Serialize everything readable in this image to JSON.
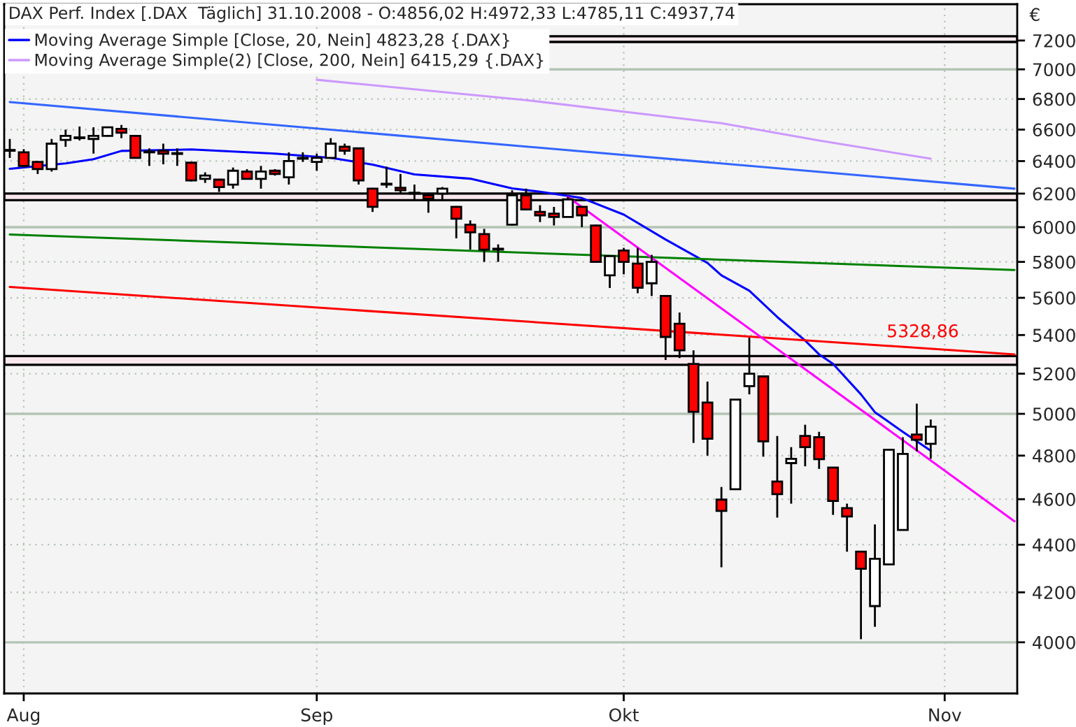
{
  "chart_data": {
    "type": "candlestick",
    "title": "DAX Perf. Index [.DAX  Täglich] 31.10.2008 - O:4856,02 H:4972,33 L:4785,11 C:4937,74",
    "ylabel": "€",
    "categories": [
      null,
      "Aug",
      null,
      null,
      null,
      null,
      null,
      null,
      null,
      null,
      null,
      null,
      null,
      null,
      null,
      null,
      null,
      null,
      null,
      null,
      null,
      null,
      "Sep",
      null,
      null,
      null,
      null,
      null,
      null,
      null,
      null,
      null,
      null,
      null,
      null,
      null,
      null,
      null,
      null,
      null,
      null,
      null,
      null,
      null,
      "Okt",
      null,
      null,
      null,
      null,
      null,
      null,
      null,
      null,
      null,
      null,
      null,
      null,
      null,
      null,
      null,
      null,
      null,
      null,
      null,
      null,
      null,
      null,
      "Nov",
      null,
      null,
      null,
      null,
      null
    ],
    "ohlc": [
      [
        6470,
        6540,
        6420,
        6465
      ],
      [
        6455,
        6475,
        6360,
        6370
      ],
      [
        6395,
        6400,
        6320,
        6350
      ],
      [
        6350,
        6540,
        6335,
        6510
      ],
      [
        6534,
        6600,
        6490,
        6560
      ],
      [
        6545,
        6620,
        6530,
        6550
      ],
      [
        6540,
        6615,
        6447,
        6560
      ],
      [
        6560,
        6620,
        6555,
        6615
      ],
      [
        6605,
        6630,
        6545,
        6580
      ],
      [
        6560,
        6565,
        6420,
        6420
      ],
      [
        6460,
        6480,
        6370,
        6455
      ],
      [
        6465,
        6510,
        6380,
        6447
      ],
      [
        6450,
        6480,
        6370,
        6445
      ],
      [
        6390,
        6395,
        6274,
        6280
      ],
      [
        6290,
        6330,
        6265,
        6310
      ],
      [
        6285,
        6290,
        6210,
        6240
      ],
      [
        6255,
        6360,
        6230,
        6340
      ],
      [
        6335,
        6350,
        6285,
        6290
      ],
      [
        6290,
        6370,
        6230,
        6335
      ],
      [
        6340,
        6350,
        6310,
        6320
      ],
      [
        6300,
        6455,
        6255,
        6400
      ],
      [
        6415,
        6455,
        6395,
        6420
      ],
      [
        6395,
        6447,
        6340,
        6420
      ],
      [
        6420,
        6545,
        6420,
        6510
      ],
      [
        6490,
        6510,
        6440,
        6465
      ],
      [
        6480,
        6480,
        6255,
        6280
      ],
      [
        6230,
        6235,
        6090,
        6120
      ],
      [
        6260,
        6365,
        6235,
        6255
      ],
      [
        6235,
        6320,
        6200,
        6220
      ],
      [
        6205,
        6255,
        6165,
        6200
      ],
      [
        6190,
        6205,
        6085,
        6170
      ],
      [
        6200,
        6240,
        6160,
        6230
      ],
      [
        6120,
        6125,
        5935,
        6050
      ],
      [
        6015,
        6040,
        5870,
        5970
      ],
      [
        5960,
        5990,
        5800,
        5870
      ],
      [
        5875,
        5900,
        5800,
        5870
      ],
      [
        6015,
        6220,
        6010,
        6190
      ],
      [
        6190,
        6230,
        6100,
        6105
      ],
      [
        6090,
        6130,
        6030,
        6070
      ],
      [
        6080,
        6120,
        6010,
        6060
      ],
      [
        6060,
        6180,
        6060,
        6165
      ],
      [
        6120,
        6125,
        6000,
        6070
      ],
      [
        6010,
        6015,
        5795,
        5800
      ],
      [
        5724,
        5833,
        5654,
        5833
      ],
      [
        5865,
        5880,
        5730,
        5800
      ],
      [
        5790,
        5880,
        5625,
        5655
      ],
      [
        5680,
        5840,
        5610,
        5800
      ],
      [
        5610,
        5610,
        5270,
        5390
      ],
      [
        5460,
        5520,
        5280,
        5320
      ],
      [
        5250,
        5320,
        4860,
        5010
      ],
      [
        5055,
        5160,
        4800,
        4880
      ],
      [
        4598,
        4655,
        4304,
        4548
      ],
      [
        4645,
        5070,
        4645,
        5070
      ],
      [
        5137,
        5386,
        5096,
        5200
      ],
      [
        5186,
        5186,
        4795,
        4867
      ],
      [
        4680,
        4893,
        4518,
        4623
      ],
      [
        4765,
        4840,
        4580,
        4785
      ],
      [
        4893,
        4947,
        4750,
        4840
      ],
      [
        4887,
        4913,
        4738,
        4783
      ],
      [
        4744,
        4744,
        4530,
        4592
      ],
      [
        4560,
        4580,
        4370,
        4523
      ],
      [
        4370,
        4370,
        4012,
        4298
      ],
      [
        4144,
        4488,
        4061,
        4340
      ],
      [
        4316,
        4828,
        4316,
        4828
      ],
      [
        4464,
        4887,
        4464,
        4808
      ],
      [
        4900,
        5050,
        4820,
        4875
      ],
      [
        4856.02,
        4972.33,
        4785.11,
        4937.74
      ],
      null,
      null,
      null,
      null,
      null,
      null
    ],
    "series": [
      {
        "name": "Moving Average Simple [Close, 20, Nein] 4823,28 {.DAX}",
        "type": "line",
        "color": "#0000ff",
        "values": [
          6352,
          null,
          null,
          null,
          6386,
          null,
          6412,
          null,
          6464,
          null,
          null,
          null,
          null,
          6473,
          null,
          null,
          null,
          null,
          null,
          6447,
          null,
          null,
          null,
          6421,
          null,
          null,
          6378,
          null,
          null,
          6317,
          null,
          null,
          null,
          6291,
          null,
          null,
          6232,
          null,
          6211,
          null,
          null,
          6173,
          null,
          null,
          6074,
          null,
          null,
          5928,
          null,
          null,
          5794,
          5724,
          null,
          5639,
          null,
          5496,
          null,
          5371,
          5299,
          5250,
          null,
          5096,
          5008,
          null,
          4913,
          null,
          4823,
          null,
          null,
          null,
          null,
          null,
          null
        ]
      },
      {
        "name": "Moving Average Simple(2) [Close, 200, Nein] 6415,29 {.DAX}",
        "type": "line",
        "color": "#cc99ff",
        "values": [
          null,
          null,
          null,
          null,
          null,
          null,
          null,
          null,
          null,
          null,
          null,
          null,
          null,
          null,
          null,
          null,
          null,
          null,
          null,
          null,
          null,
          null,
          6929,
          null,
          null,
          null,
          null,
          null,
          null,
          null,
          null,
          null,
          null,
          null,
          null,
          null,
          null,
          6793,
          null,
          null,
          null,
          null,
          null,
          null,
          null,
          null,
          null,
          null,
          null,
          null,
          null,
          6641,
          null,
          null,
          null,
          null,
          null,
          null,
          6530,
          null,
          null,
          null,
          null,
          null,
          null,
          null,
          6415,
          null,
          null,
          null,
          null,
          null,
          null
        ]
      },
      {
        "type": "line",
        "color": "#3366ff",
        "values": [
          6780,
          null,
          null,
          null,
          null,
          null,
          null,
          null,
          null,
          null,
          null,
          null,
          null,
          null,
          null,
          null,
          null,
          null,
          null,
          null,
          null,
          null,
          null,
          null,
          null,
          null,
          null,
          null,
          null,
          null,
          null,
          null,
          null,
          null,
          null,
          null,
          null,
          null,
          null,
          null,
          null,
          null,
          null,
          null,
          null,
          null,
          null,
          null,
          null,
          null,
          null,
          null,
          null,
          null,
          null,
          null,
          null,
          null,
          null,
          null,
          null,
          null,
          null,
          null,
          null,
          null,
          null,
          null,
          null,
          null,
          null,
          null,
          6230
        ]
      },
      {
        "type": "line",
        "color": "#008000",
        "values": [
          5957,
          null,
          null,
          null,
          null,
          null,
          null,
          null,
          null,
          null,
          null,
          null,
          null,
          null,
          null,
          null,
          null,
          null,
          null,
          null,
          null,
          null,
          null,
          null,
          null,
          null,
          null,
          null,
          null,
          null,
          null,
          null,
          null,
          null,
          null,
          null,
          null,
          null,
          null,
          null,
          null,
          null,
          null,
          null,
          null,
          null,
          null,
          null,
          null,
          null,
          null,
          null,
          null,
          null,
          null,
          null,
          null,
          null,
          null,
          null,
          null,
          null,
          null,
          null,
          null,
          null,
          null,
          null,
          null,
          null,
          null,
          null,
          5754
        ]
      },
      {
        "type": "line",
        "color": "#ff0000",
        "values": [
          5660,
          null,
          null,
          null,
          null,
          null,
          null,
          null,
          null,
          null,
          null,
          null,
          null,
          null,
          null,
          null,
          null,
          null,
          null,
          null,
          null,
          null,
          null,
          null,
          null,
          null,
          null,
          null,
          null,
          null,
          null,
          null,
          null,
          null,
          null,
          null,
          null,
          null,
          null,
          null,
          null,
          null,
          null,
          null,
          null,
          null,
          null,
          null,
          null,
          null,
          null,
          null,
          null,
          null,
          null,
          null,
          null,
          null,
          null,
          null,
          null,
          null,
          null,
          null,
          null,
          null,
          null,
          null,
          null,
          null,
          null,
          null,
          5299
        ]
      },
      {
        "type": "line",
        "color": "#ff00ff",
        "values": [
          null,
          null,
          null,
          null,
          null,
          null,
          null,
          null,
          null,
          null,
          null,
          null,
          null,
          null,
          null,
          null,
          null,
          null,
          null,
          null,
          null,
          null,
          null,
          null,
          null,
          null,
          null,
          null,
          null,
          null,
          null,
          null,
          null,
          null,
          null,
          null,
          null,
          null,
          null,
          null,
          6180,
          null,
          null,
          null,
          null,
          null,
          null,
          null,
          null,
          null,
          null,
          null,
          null,
          null,
          null,
          null,
          null,
          null,
          null,
          null,
          null,
          null,
          null,
          null,
          null,
          null,
          null,
          null,
          null,
          null,
          null,
          null,
          4502
        ]
      }
    ],
    "bands": [
      {
        "axis": "y",
        "from": 7190,
        "to": 7230,
        "color": "#f8e8ee"
      },
      {
        "axis": "y",
        "from": 6160,
        "to": 6200,
        "color": "#f8e8ee"
      },
      {
        "axis": "y",
        "from": 5245,
        "to": 5290,
        "color": "#f8e8ee"
      }
    ],
    "annotations": [
      {
        "text": "5328,86",
        "y": 5329
      }
    ],
    "ylim": [
      3805,
      7460
    ],
    "yticks": [
      4000,
      4200,
      4400,
      4600,
      4800,
      5000,
      5200,
      5400,
      5600,
      5800,
      6000,
      6200,
      6400,
      6600,
      6800,
      7000,
      7200
    ],
    "log": "y",
    "grid": true,
    "legend": "top left"
  }
}
